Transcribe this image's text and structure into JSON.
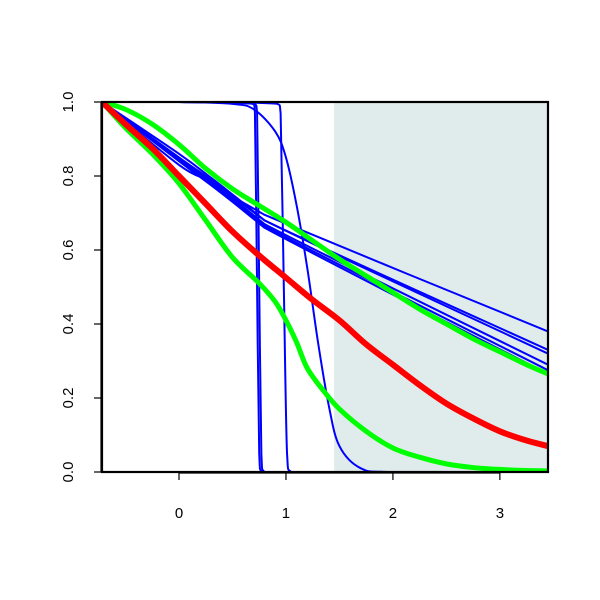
{
  "chart_data": {
    "type": "line",
    "title": "",
    "xlabel": "",
    "ylabel": "",
    "xlim": [
      -0.72,
      3.45
    ],
    "ylim": [
      0,
      1
    ],
    "x_ticks": [
      {
        "value": 0,
        "label": "0"
      },
      {
        "value": 1,
        "label": "1"
      },
      {
        "value": 2,
        "label": "2"
      },
      {
        "value": 3,
        "label": "3"
      }
    ],
    "y_ticks": [
      {
        "value": 0.0,
        "label": "0.0"
      },
      {
        "value": 0.2,
        "label": "0.2"
      },
      {
        "value": 0.4,
        "label": "0.4"
      },
      {
        "value": 0.6,
        "label": "0.6"
      },
      {
        "value": 0.8,
        "label": "0.8"
      },
      {
        "value": 1.0,
        "label": "1.0"
      }
    ],
    "grid": false,
    "legend": "none",
    "shaded_region": {
      "x": [
        1.45,
        3.45
      ],
      "color": "#e0ecec"
    },
    "series": [
      {
        "color": "#0000ff",
        "width": 2,
        "x": [
          -0.72,
          0.0,
          0.7,
          0.73,
          0.75,
          0.77,
          0.8,
          3.45
        ],
        "y": [
          1.0,
          1.0,
          0.995,
          0.97,
          0.5,
          0.05,
          0.0,
          0.0
        ]
      },
      {
        "color": "#0000ff",
        "width": 2,
        "x": [
          -0.72,
          0.0,
          0.69,
          0.71,
          0.73,
          0.75,
          0.78,
          3.45
        ],
        "y": [
          1.0,
          1.0,
          0.995,
          0.97,
          0.5,
          0.05,
          0.0,
          0.0
        ]
      },
      {
        "color": "#0000ff",
        "width": 2,
        "x": [
          -0.72,
          0.0,
          0.92,
          0.95,
          0.98,
          1.01,
          1.05,
          3.45
        ],
        "y": [
          1.0,
          1.0,
          0.995,
          0.97,
          0.5,
          0.05,
          0.0,
          0.0
        ]
      },
      {
        "color": "#0000ff",
        "width": 2,
        "x": [
          -0.72,
          0.0,
          0.5,
          0.7,
          0.9,
          1.0,
          1.1,
          1.2,
          1.3,
          1.4,
          1.5,
          1.7,
          2.0,
          3.45
        ],
        "y": [
          1.0,
          1.0,
          0.995,
          0.98,
          0.92,
          0.85,
          0.72,
          0.55,
          0.35,
          0.18,
          0.07,
          0.01,
          0.0,
          0.0
        ]
      },
      {
        "color": "#0000ff",
        "width": 2,
        "x": [
          -0.72,
          0.0,
          0.3,
          0.5,
          0.8,
          3.45
        ],
        "y": [
          1.0,
          0.83,
          0.785,
          0.745,
          0.695,
          0.38
        ]
      },
      {
        "color": "#0000ff",
        "width": 2,
        "x": [
          -0.72,
          0.0,
          0.3,
          0.5,
          0.8,
          3.45
        ],
        "y": [
          1.0,
          0.85,
          0.79,
          0.745,
          0.68,
          0.33
        ]
      },
      {
        "color": "#0000ff",
        "width": 2,
        "x": [
          -0.72,
          0.0,
          0.3,
          0.5,
          0.8,
          3.45
        ],
        "y": [
          1.0,
          0.86,
          0.795,
          0.75,
          0.68,
          0.32
        ]
      },
      {
        "color": "#0000ff",
        "width": 2,
        "x": [
          -0.72,
          0.0,
          0.3,
          0.5,
          0.8,
          3.45
        ],
        "y": [
          1.0,
          0.85,
          0.785,
          0.74,
          0.67,
          0.29
        ]
      },
      {
        "color": "#0000ff",
        "width": 2,
        "x": [
          -0.72,
          0.0,
          0.3,
          0.5,
          0.8,
          3.45
        ],
        "y": [
          1.0,
          0.845,
          0.78,
          0.735,
          0.665,
          0.275
        ]
      },
      {
        "color": "#0000ff",
        "width": 2,
        "x": [
          -0.72,
          0.0,
          0.3,
          0.5,
          0.8,
          3.45
        ],
        "y": [
          1.0,
          0.84,
          0.775,
          0.73,
          0.66,
          0.265
        ]
      },
      {
        "color": "#00ff00",
        "width": 5,
        "x": [
          -0.72,
          -0.5,
          -0.25,
          0.0,
          0.25,
          0.5,
          0.75,
          1.0,
          1.25,
          1.5,
          1.75,
          2.0,
          2.25,
          2.5,
          2.75,
          3.0,
          3.25,
          3.45
        ],
        "y": [
          1.0,
          0.98,
          0.94,
          0.885,
          0.82,
          0.765,
          0.72,
          0.675,
          0.625,
          0.575,
          0.53,
          0.485,
          0.44,
          0.4,
          0.36,
          0.325,
          0.29,
          0.265
        ]
      },
      {
        "color": "#00ff00",
        "width": 5,
        "x": [
          -0.72,
          -0.5,
          -0.25,
          0.0,
          0.25,
          0.5,
          0.75,
          0.9,
          1.0,
          1.1,
          1.2,
          1.35,
          1.5,
          1.75,
          2.0,
          2.25,
          2.5,
          2.75,
          3.0,
          3.25,
          3.45
        ],
        "y": [
          1.0,
          0.93,
          0.86,
          0.78,
          0.68,
          0.58,
          0.51,
          0.46,
          0.41,
          0.35,
          0.28,
          0.22,
          0.17,
          0.11,
          0.065,
          0.04,
          0.022,
          0.012,
          0.007,
          0.004,
          0.003
        ]
      },
      {
        "color": "#ff0000",
        "width": 6,
        "x": [
          -0.72,
          -0.5,
          -0.25,
          0.0,
          0.25,
          0.5,
          0.75,
          1.0,
          1.25,
          1.5,
          1.75,
          2.0,
          2.25,
          2.5,
          2.75,
          3.0,
          3.25,
          3.45
        ],
        "y": [
          1.0,
          0.94,
          0.875,
          0.8,
          0.725,
          0.65,
          0.585,
          0.525,
          0.465,
          0.41,
          0.345,
          0.29,
          0.235,
          0.185,
          0.145,
          0.11,
          0.085,
          0.07
        ]
      }
    ]
  }
}
